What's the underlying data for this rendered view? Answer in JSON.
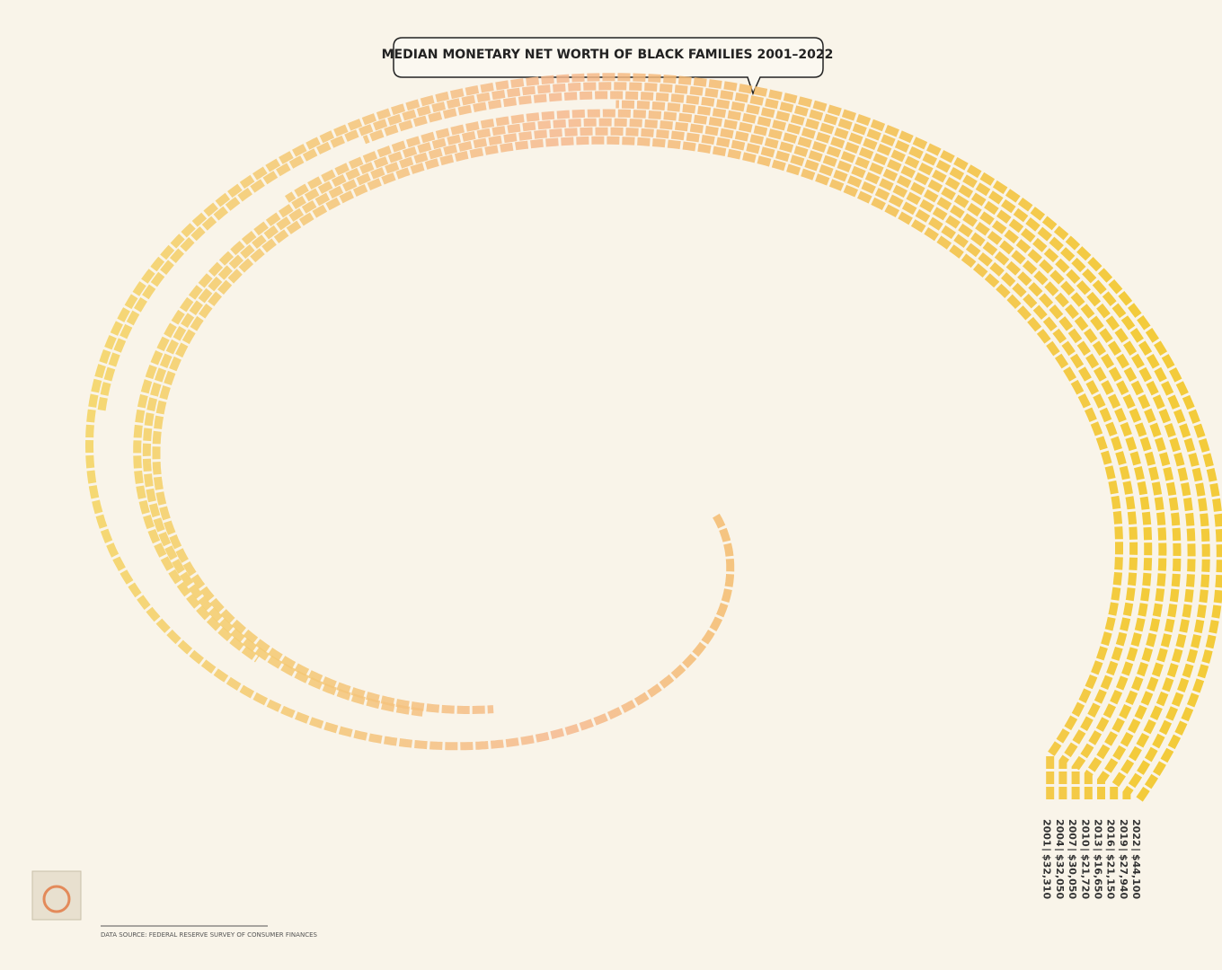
{
  "chart_data": {
    "type": "spiral",
    "title": "MEDIAN MONETARY NET WORTH OF BLACK FAMILIES 2001–2022",
    "categories": [
      "2001",
      "2004",
      "2007",
      "2010",
      "2013",
      "2016",
      "2019",
      "2022"
    ],
    "values": [
      32310,
      32050,
      30050,
      21720,
      16650,
      21150,
      27940,
      44100
    ],
    "value_labels": [
      "$32,310",
      "$32,050",
      "$30,050",
      "$21,720",
      "$16,650",
      "$21,150",
      "$27,940",
      "$44,100"
    ],
    "colors": [
      "#f4d35e",
      "#f5b98f",
      "#f2c41c"
    ],
    "source": "DATA SOURCE: FEDERAL RESERVE SURVEY OF CONSUMER FINANCES"
  }
}
